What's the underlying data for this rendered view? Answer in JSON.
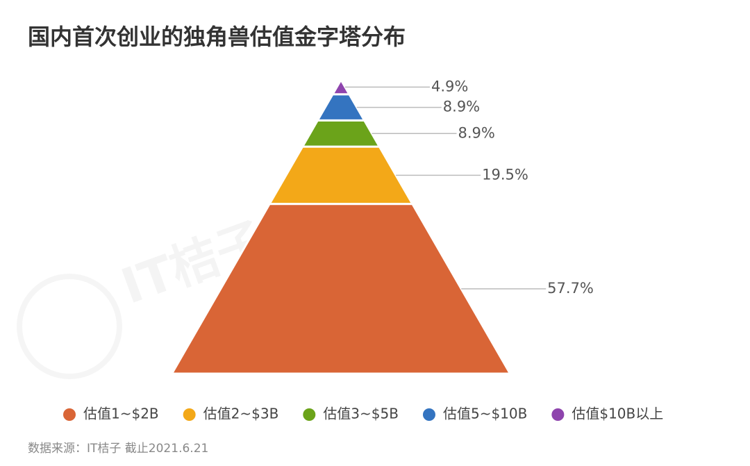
{
  "chart_data": {
    "type": "pyramid",
    "title": "国内首次创业的独角兽估值金字塔分布",
    "categories": [
      "估值1~$2B",
      "估值2~$3B",
      "估值3~$5B",
      "估值5~$10B",
      "估值$10B以上"
    ],
    "values": [
      57.7,
      19.5,
      8.9,
      8.9,
      4.9
    ],
    "value_labels": [
      "57.7%",
      "19.5%",
      "8.9%",
      "8.9%",
      "4.9%"
    ],
    "colors": [
      "#d96536",
      "#f3a818",
      "#6ba31a",
      "#3474c0",
      "#8e44ad"
    ],
    "note": "数据来源：IT桔子 截止2021.6.21",
    "watermark": "IT桔子"
  }
}
